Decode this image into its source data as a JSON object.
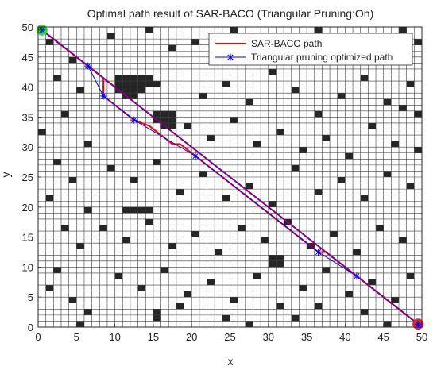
{
  "chart_data": {
    "type": "line",
    "title": "Optimal path result of SAR-BACO (Triangular Pruning:On)",
    "xlabel": "x",
    "ylabel": "y",
    "xlim": [
      0,
      50
    ],
    "ylim": [
      0,
      50
    ],
    "xticks": [
      0,
      5,
      10,
      15,
      20,
      25,
      30,
      35,
      40,
      45,
      50
    ],
    "yticks": [
      0,
      5,
      10,
      15,
      20,
      25,
      30,
      35,
      40,
      45,
      50
    ],
    "grid": "1x1 cell occupancy grid",
    "legend_position": "top-right",
    "start": {
      "x": 0.5,
      "y": 49.5,
      "color": "#33dd33"
    },
    "goal": {
      "x": 49.5,
      "y": 0.5,
      "color": "#ee2222"
    },
    "series": [
      {
        "name": "SAR-BACO path",
        "color": "#ff0000",
        "marker": "none",
        "points": [
          [
            0.5,
            49.5
          ],
          [
            6.5,
            43.5
          ],
          [
            7.5,
            42.5
          ],
          [
            8.5,
            41.5
          ],
          [
            8.5,
            40.5
          ],
          [
            8.5,
            38.5
          ],
          [
            9.5,
            37.5
          ],
          [
            10.5,
            36.5
          ],
          [
            11.5,
            35.5
          ],
          [
            12.5,
            34.5
          ],
          [
            14.5,
            33.5
          ],
          [
            15.5,
            32.5
          ],
          [
            16.5,
            31.5
          ],
          [
            17.5,
            30.5
          ],
          [
            18.5,
            30.5
          ],
          [
            19.5,
            29.5
          ],
          [
            20.5,
            28.5
          ],
          [
            21.5,
            27.5
          ],
          [
            36.5,
            12.5
          ],
          [
            37.5,
            12.5
          ],
          [
            38.5,
            11.5
          ],
          [
            39.5,
            10.5
          ],
          [
            40.5,
            9.5
          ],
          [
            41.5,
            8.5
          ],
          [
            49.5,
            0.5
          ]
        ]
      },
      {
        "name": "Triangular pruning optimized path",
        "color": "#0000ff",
        "marker": "star",
        "points": [
          [
            0.5,
            49.5
          ],
          [
            6.5,
            43.5
          ],
          [
            8.5,
            38.5
          ],
          [
            12.5,
            34.5
          ],
          [
            20.5,
            28.5
          ],
          [
            36.5,
            12.5
          ],
          [
            41.5,
            8.5
          ],
          [
            49.5,
            0.5
          ]
        ]
      }
    ],
    "overlay_line": {
      "from": [
        0.5,
        49.5
      ],
      "to": [
        49.5,
        0.5
      ],
      "color": "#800080"
    },
    "obstacles": [
      [
        1,
        47
      ],
      [
        4,
        44
      ],
      [
        9,
        48
      ],
      [
        14,
        49
      ],
      [
        17,
        46
      ],
      [
        20,
        47
      ],
      [
        25,
        49
      ],
      [
        28,
        45
      ],
      [
        33,
        48
      ],
      [
        36,
        49
      ],
      [
        40,
        48
      ],
      [
        44,
        46
      ],
      [
        47,
        49
      ],
      [
        49,
        47
      ],
      [
        2,
        41
      ],
      [
        5,
        39
      ],
      [
        3,
        35
      ],
      [
        0,
        32
      ],
      [
        6,
        30
      ],
      [
        2,
        27
      ],
      [
        4,
        24
      ],
      [
        1,
        21
      ],
      [
        6,
        19
      ],
      [
        3,
        16
      ],
      [
        5,
        13
      ],
      [
        2,
        9
      ],
      [
        1,
        6
      ],
      [
        4,
        4
      ],
      [
        6,
        2
      ],
      [
        5,
        0
      ],
      [
        10,
        41
      ],
      [
        11,
        41
      ],
      [
        12,
        41
      ],
      [
        13,
        41
      ],
      [
        14,
        41
      ],
      [
        10,
        40
      ],
      [
        11,
        40
      ],
      [
        12,
        40
      ],
      [
        13,
        40
      ],
      [
        14,
        40
      ],
      [
        15,
        40
      ],
      [
        10,
        39
      ],
      [
        11,
        39
      ],
      [
        12,
        39
      ],
      [
        13,
        39
      ],
      [
        11,
        38
      ],
      [
        12,
        38
      ],
      [
        15,
        35
      ],
      [
        16,
        35
      ],
      [
        17,
        35
      ],
      [
        15,
        34
      ],
      [
        16,
        34
      ],
      [
        17,
        34
      ],
      [
        16,
        33
      ],
      [
        17,
        33
      ],
      [
        21,
        38
      ],
      [
        24,
        40
      ],
      [
        27,
        37
      ],
      [
        30,
        42
      ],
      [
        33,
        39
      ],
      [
        36,
        35
      ],
      [
        39,
        38
      ],
      [
        42,
        41
      ],
      [
        45,
        37
      ],
      [
        48,
        40
      ],
      [
        47,
        36
      ],
      [
        49,
        35
      ],
      [
        19,
        33
      ],
      [
        22,
        31
      ],
      [
        25,
        34
      ],
      [
        28,
        30
      ],
      [
        31,
        32
      ],
      [
        34,
        29
      ],
      [
        37,
        31
      ],
      [
        40,
        28
      ],
      [
        43,
        33
      ],
      [
        46,
        30
      ],
      [
        49,
        29
      ],
      [
        9,
        26
      ],
      [
        12,
        24
      ],
      [
        15,
        27
      ],
      [
        18,
        22
      ],
      [
        21,
        25
      ],
      [
        24,
        21
      ],
      [
        27,
        23
      ],
      [
        30,
        20
      ],
      [
        33,
        26
      ],
      [
        36,
        22
      ],
      [
        39,
        24
      ],
      [
        42,
        21
      ],
      [
        45,
        25
      ],
      [
        48,
        23
      ],
      [
        11,
        19
      ],
      [
        12,
        19
      ],
      [
        13,
        19
      ],
      [
        14,
        19
      ],
      [
        8,
        16
      ],
      [
        11,
        14
      ],
      [
        14,
        17
      ],
      [
        17,
        13
      ],
      [
        20,
        15
      ],
      [
        23,
        12
      ],
      [
        26,
        16
      ],
      [
        29,
        14
      ],
      [
        32,
        17
      ],
      [
        35,
        13
      ],
      [
        38,
        15
      ],
      [
        41,
        12
      ],
      [
        44,
        16
      ],
      [
        47,
        14
      ],
      [
        30,
        11
      ],
      [
        31,
        11
      ],
      [
        30,
        10
      ],
      [
        31,
        10
      ],
      [
        10,
        8
      ],
      [
        13,
        6
      ],
      [
        16,
        9
      ],
      [
        19,
        5
      ],
      [
        22,
        7
      ],
      [
        25,
        4
      ],
      [
        28,
        8
      ],
      [
        31,
        3
      ],
      [
        34,
        6
      ],
      [
        37,
        9
      ],
      [
        40,
        5
      ],
      [
        43,
        7
      ],
      [
        46,
        4
      ],
      [
        48,
        8
      ],
      [
        15,
        2
      ],
      [
        15,
        1
      ],
      [
        18,
        3
      ],
      [
        24,
        1
      ],
      [
        27,
        0
      ],
      [
        33,
        1
      ],
      [
        36,
        3
      ],
      [
        42,
        2
      ],
      [
        45,
        0
      ]
    ]
  }
}
